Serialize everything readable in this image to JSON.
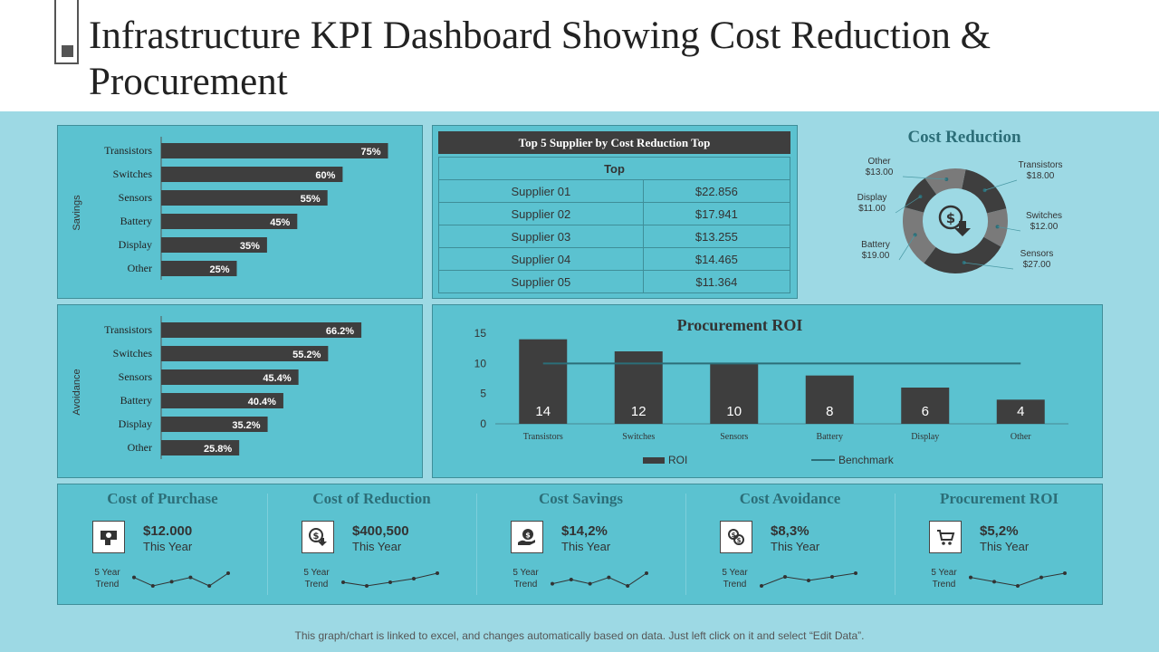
{
  "title": "Infrastructure KPI Dashboard Showing Cost Reduction & Procurement",
  "savings_chart": {
    "ylabel": "Savings",
    "categories": [
      "Transistors",
      "Switches",
      "Sensors",
      "Battery",
      "Display",
      "Other"
    ],
    "values": [
      75,
      60,
      55,
      45,
      35,
      25
    ],
    "labels": [
      "75%",
      "60%",
      "55%",
      "45%",
      "35%",
      "25%"
    ]
  },
  "avoidance_chart": {
    "ylabel": "Avoidance",
    "categories": [
      "Transistors",
      "Switches",
      "Sensors",
      "Battery",
      "Display",
      "Other"
    ],
    "values": [
      66.2,
      55.2,
      45.4,
      40.4,
      35.2,
      25.8
    ],
    "labels": [
      "66.2%",
      "55.2%",
      "45.4%",
      "40.4%",
      "35.2%",
      "25.8%"
    ]
  },
  "supplier_table": {
    "title": "Top 5 Supplier by Cost Reduction Top",
    "header": "Top",
    "rows": [
      {
        "name": "Supplier 01",
        "value": "$22.856"
      },
      {
        "name": "Supplier 02",
        "value": "$17.941"
      },
      {
        "name": "Supplier 03",
        "value": "$13.255"
      },
      {
        "name": "Supplier 04",
        "value": "$14.465"
      },
      {
        "name": "Supplier 05",
        "value": "$11.364"
      }
    ]
  },
  "cost_reduction": {
    "title": "Cost Reduction",
    "slices": [
      {
        "name": "Transistors",
        "value": 18,
        "label": "$18.00",
        "color": "#3e3e3e"
      },
      {
        "name": "Switches",
        "value": 12,
        "label": "$12.00",
        "color": "#7a7a7a"
      },
      {
        "name": "Sensors",
        "value": 27,
        "label": "$27.00",
        "color": "#3e3e3e"
      },
      {
        "name": "Battery",
        "value": 19,
        "label": "$19.00",
        "color": "#7a7a7a"
      },
      {
        "name": "Display",
        "value": 11,
        "label": "$11.00",
        "color": "#3e3e3e"
      },
      {
        "name": "Other",
        "value": 13,
        "label": "$13.00",
        "color": "#7a7a7a"
      }
    ]
  },
  "chart_data": {
    "type": "bar",
    "title": "Procurement ROI",
    "categories": [
      "Transistors",
      "Switches",
      "Sensors",
      "Battery",
      "Display",
      "Other"
    ],
    "series": [
      {
        "name": "ROI",
        "values": [
          14,
          12,
          10,
          8,
          6,
          4
        ]
      },
      {
        "name": "Benchmark",
        "values": [
          10,
          10,
          10,
          10,
          10,
          10
        ]
      }
    ],
    "yticks": [
      "0",
      "5",
      "10",
      "15"
    ],
    "ylim": [
      0,
      15
    ]
  },
  "kpis": [
    {
      "title": "Cost of Purchase",
      "value": "$12.000",
      "sub": "This Year",
      "trend_label": "5 Year Trend",
      "icon": "money-icon",
      "trend": [
        3,
        1,
        2,
        3,
        1,
        4
      ]
    },
    {
      "title": "Cost of Reduction",
      "value": "$400,500",
      "sub": "This Year",
      "trend_label": "5 Year Trend",
      "icon": "dollar-down-icon",
      "trend": [
        3,
        1,
        3,
        5,
        8
      ]
    },
    {
      "title": "Cost Savings",
      "value": "$14,2%",
      "sub": "This Year",
      "trend_label": "5 Year Trend",
      "icon": "hand-coin-icon",
      "trend": [
        2,
        4,
        2,
        5,
        1,
        7
      ]
    },
    {
      "title": "Cost Avoidance",
      "value": "$8,3%",
      "sub": "This Year",
      "trend_label": "5 Year Trend",
      "icon": "coins-icon",
      "trend": [
        1,
        6,
        4,
        6,
        8
      ]
    },
    {
      "title": "Procurement ROI",
      "value": "$5,2%",
      "sub": "This Year",
      "trend_label": "5 Year Trend",
      "icon": "cart-icon",
      "trend": [
        3,
        2,
        1,
        3,
        4
      ]
    }
  ],
  "footnote": "This graph/chart is linked to excel, and changes automatically based on data. Just left click on it and select “Edit Data”."
}
